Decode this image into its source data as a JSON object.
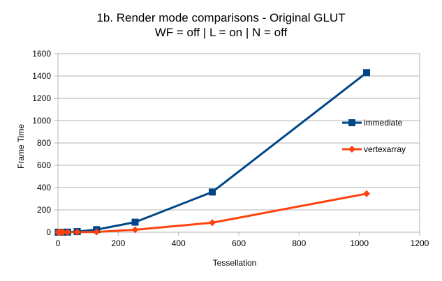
{
  "chart_data": {
    "type": "line",
    "title": "1b. Render mode comparisons - Original GLUT",
    "subtitle": "WF = off | L = on | N = off",
    "xlabel": "Tessellation",
    "ylabel": "Frame Time",
    "xlim": [
      0,
      1200
    ],
    "ylim": [
      0,
      1600
    ],
    "xticks": [
      0,
      200,
      400,
      600,
      800,
      1000,
      1200
    ],
    "yticks": [
      0,
      200,
      400,
      600,
      800,
      1000,
      1200,
      1400,
      1600
    ],
    "grid": "horizontal",
    "legend_position": "right",
    "series": [
      {
        "name": "immediate",
        "color": "#004586",
        "marker": "square",
        "x": [
          1,
          2,
          4,
          8,
          16,
          32,
          64,
          128,
          256,
          512,
          1024
        ],
        "y": [
          0,
          0,
          0,
          0,
          0,
          1,
          6,
          23,
          90,
          360,
          1430
        ]
      },
      {
        "name": "vertexarray",
        "color": "#ff420e",
        "marker": "diamond",
        "x": [
          1,
          2,
          4,
          8,
          16,
          32,
          64,
          128,
          256,
          512,
          1024
        ],
        "y": [
          0,
          0,
          0,
          0,
          0,
          0,
          1,
          2,
          22,
          85,
          345
        ]
      }
    ]
  }
}
